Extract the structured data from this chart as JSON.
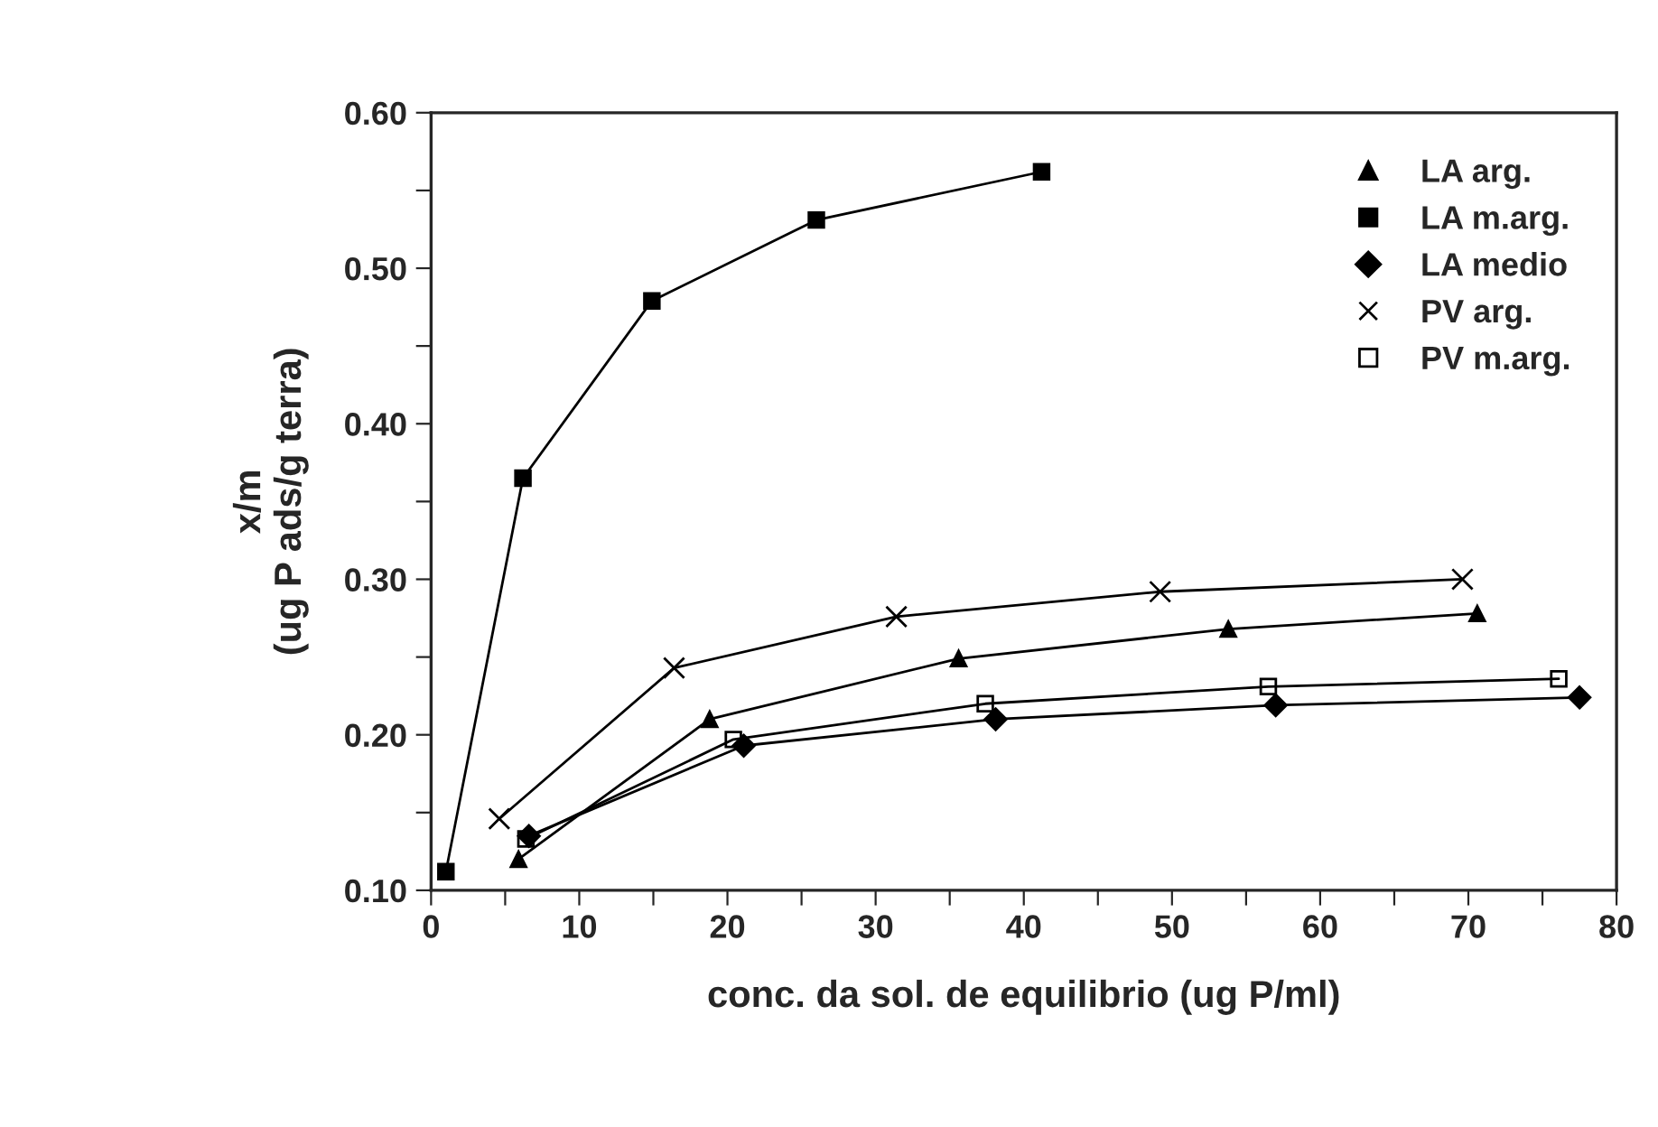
{
  "chart_data": {
    "type": "line",
    "xlabel": "conc. da sol. de equilibrio (ug P/ml)",
    "ylabel": "x/m\n(ug P ads/g terra)",
    "xlim": [
      0,
      80
    ],
    "ylim": [
      0.1,
      0.6
    ],
    "xticks": [
      0,
      {
        "value": 5,
        "label": null
      },
      10,
      {
        "value": 15,
        "label": null
      },
      20,
      {
        "value": 25,
        "label": null
      },
      30,
      {
        "value": 35,
        "label": null
      },
      40,
      {
        "value": 45,
        "label": null
      },
      50,
      {
        "value": 55,
        "label": null
      },
      60,
      {
        "value": 65,
        "label": null
      },
      70,
      {
        "value": 75,
        "label": null
      },
      80
    ],
    "yticks": [
      {
        "value": 0.1,
        "label": "0.10"
      },
      {
        "value": 0.15,
        "label": null
      },
      {
        "value": 0.2,
        "label": "0.20"
      },
      {
        "value": 0.25,
        "label": null
      },
      {
        "value": 0.3,
        "label": "0.30"
      },
      {
        "value": 0.35,
        "label": null
      },
      {
        "value": 0.4,
        "label": "0.40"
      },
      {
        "value": 0.45,
        "label": null
      },
      {
        "value": 0.5,
        "label": "0.50"
      },
      {
        "value": 0.55,
        "label": null
      },
      {
        "value": 0.6,
        "label": "0.60"
      }
    ],
    "grid": false,
    "legend": "top right",
    "line_style": "solid",
    "series": [
      {
        "name": "LA arg.",
        "color": "#000000",
        "marker": "triangle",
        "x": [
          5.9,
          18.8,
          35.6,
          53.8,
          70.6
        ],
        "values": [
          0.12,
          0.21,
          0.249,
          0.268,
          0.278
        ]
      },
      {
        "name": "LA m.arg.",
        "color": "#000000",
        "marker": "square",
        "x": [
          1.0,
          6.2,
          14.9,
          26.0,
          41.2
        ],
        "values": [
          0.112,
          0.365,
          0.479,
          0.531,
          0.562
        ]
      },
      {
        "name": "LA medio",
        "color": "#000000",
        "marker": "diamond",
        "x": [
          6.6,
          21.1,
          38.1,
          57.0,
          77.5
        ],
        "values": [
          0.135,
          0.193,
          0.21,
          0.219,
          0.224
        ]
      },
      {
        "name": "PV arg.",
        "color": "#000000",
        "marker": "cross",
        "x": [
          4.6,
          16.4,
          31.4,
          49.2,
          69.6
        ],
        "values": [
          0.146,
          0.243,
          0.276,
          0.292,
          0.3
        ]
      },
      {
        "name": "PV m.arg.",
        "color": "#000000",
        "marker": "square_open",
        "x": [
          6.4,
          20.4,
          37.4,
          56.5,
          76.1
        ],
        "values": [
          0.133,
          0.197,
          0.22,
          0.231,
          0.236
        ]
      }
    ]
  }
}
